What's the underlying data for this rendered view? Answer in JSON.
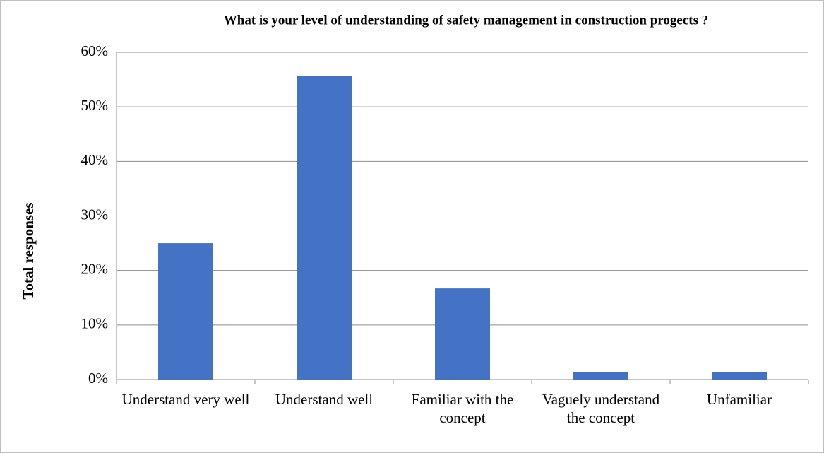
{
  "chart_data": {
    "type": "bar",
    "title": "What is your level of understanding of safety management in construction progects ?",
    "y_label": "Total responses",
    "categories": [
      "Understand very well",
      "Understand well",
      "Familiar with the concept",
      "Vaguely understand the concept",
      "Unfamiliar"
    ],
    "values": [
      25,
      55.6,
      16.7,
      1.4,
      1.4
    ],
    "color": "#4472c4",
    "ylim": [
      0,
      60
    ],
    "yticks": [
      {
        "value": 0,
        "label": "0%"
      },
      {
        "value": 10,
        "label": "10%"
      },
      {
        "value": 20,
        "label": "20%"
      },
      {
        "value": 30,
        "label": "30%"
      },
      {
        "value": 40,
        "label": "40%"
      },
      {
        "value": 50,
        "label": "50%"
      },
      {
        "value": 60,
        "label": "60%"
      }
    ],
    "grid": true
  }
}
